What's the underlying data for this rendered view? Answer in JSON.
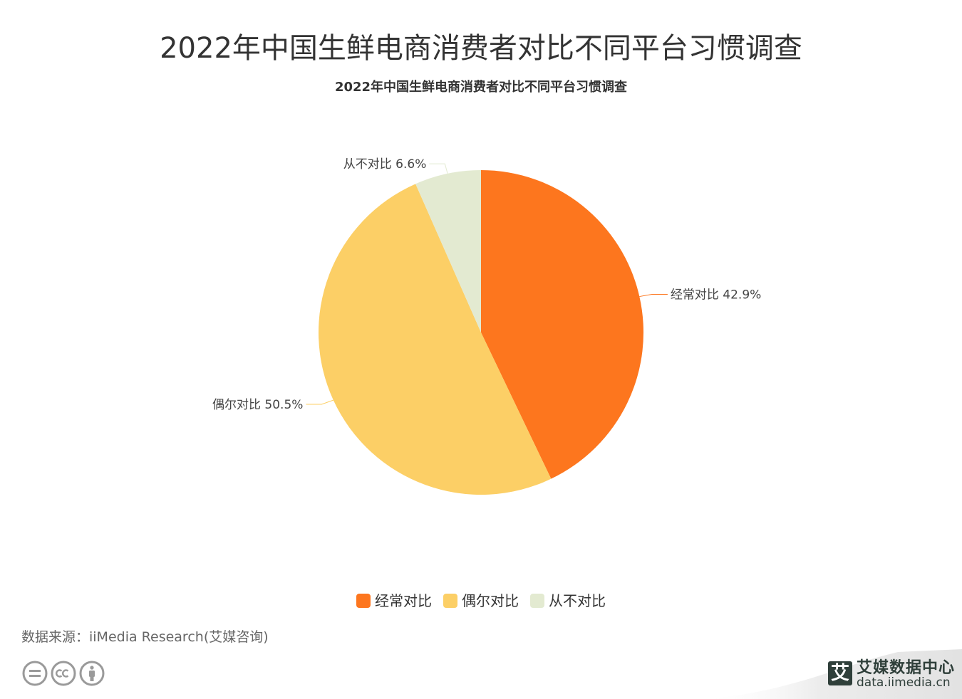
{
  "header": {
    "title": "2022年中国生鲜电商消费者对比不同平台习惯调查"
  },
  "chart_data": {
    "type": "pie",
    "title": "2022年中国生鲜电商消费者对比不同平台习惯调查",
    "unit": "%",
    "slices": [
      {
        "name": "经常对比",
        "value": 42.9,
        "color": "#fd761e"
      },
      {
        "name": "偶尔对比",
        "value": 50.5,
        "color": "#fccf66"
      },
      {
        "name": "从不对比",
        "value": 6.6,
        "color": "#e3ead1"
      }
    ],
    "slice_labels": [
      "经常对比 42.9%",
      "偶尔对比 50.5%",
      "从不对比 6.6%"
    ],
    "legend": {
      "placement": "bottom-center",
      "items": [
        "经常对比",
        "偶尔对比",
        "从不对比"
      ]
    }
  },
  "footer": {
    "source": "数据来源：iiMedia Research(艾媒咨询)",
    "icons": [
      "cc-equals-icon",
      "cc-icon",
      "cc-person-icon"
    ],
    "brand": {
      "logo_char": "艾",
      "name": "艾媒数据中心",
      "url": "data.iimedia.cn",
      "color": "#2f3f3a"
    }
  }
}
